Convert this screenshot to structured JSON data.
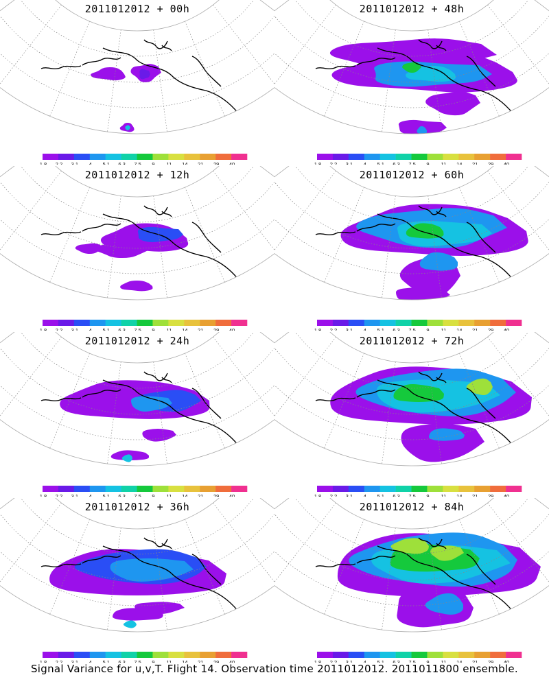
{
  "panels": [
    {
      "title": "2011012012 + 00h",
      "lead_hours": 0
    },
    {
      "title": "2011012012 + 48h",
      "lead_hours": 48
    },
    {
      "title": "2011012012 + 12h",
      "lead_hours": 12
    },
    {
      "title": "2011012012 + 60h",
      "lead_hours": 60
    },
    {
      "title": "2011012012 + 24h",
      "lead_hours": 24
    },
    {
      "title": "2011012012 + 72h",
      "lead_hours": 72
    },
    {
      "title": "2011012012 + 36h",
      "lead_hours": 36
    },
    {
      "title": "2011012012 + 84h",
      "lead_hours": 84
    }
  ],
  "colorbar": {
    "labels": [
      "1.8",
      "2.2",
      "3.1",
      "4",
      "5.1",
      "6.3",
      "7.5",
      "9",
      "11",
      "14",
      "21",
      "29",
      "40"
    ],
    "colors": [
      "#9b10ea",
      "#6a1ae8",
      "#2a4ef5",
      "#1e96f0",
      "#15c2e2",
      "#10d2a8",
      "#15c93c",
      "#9ee03a",
      "#d8e040",
      "#e8c23c",
      "#e8a032",
      "#f06d3c",
      "#f03090"
    ]
  },
  "footer": {
    "caption": "Signal Variance for u,v,T. Flight 14. Observation time 2011012012. 2011011800 ensemble."
  }
}
